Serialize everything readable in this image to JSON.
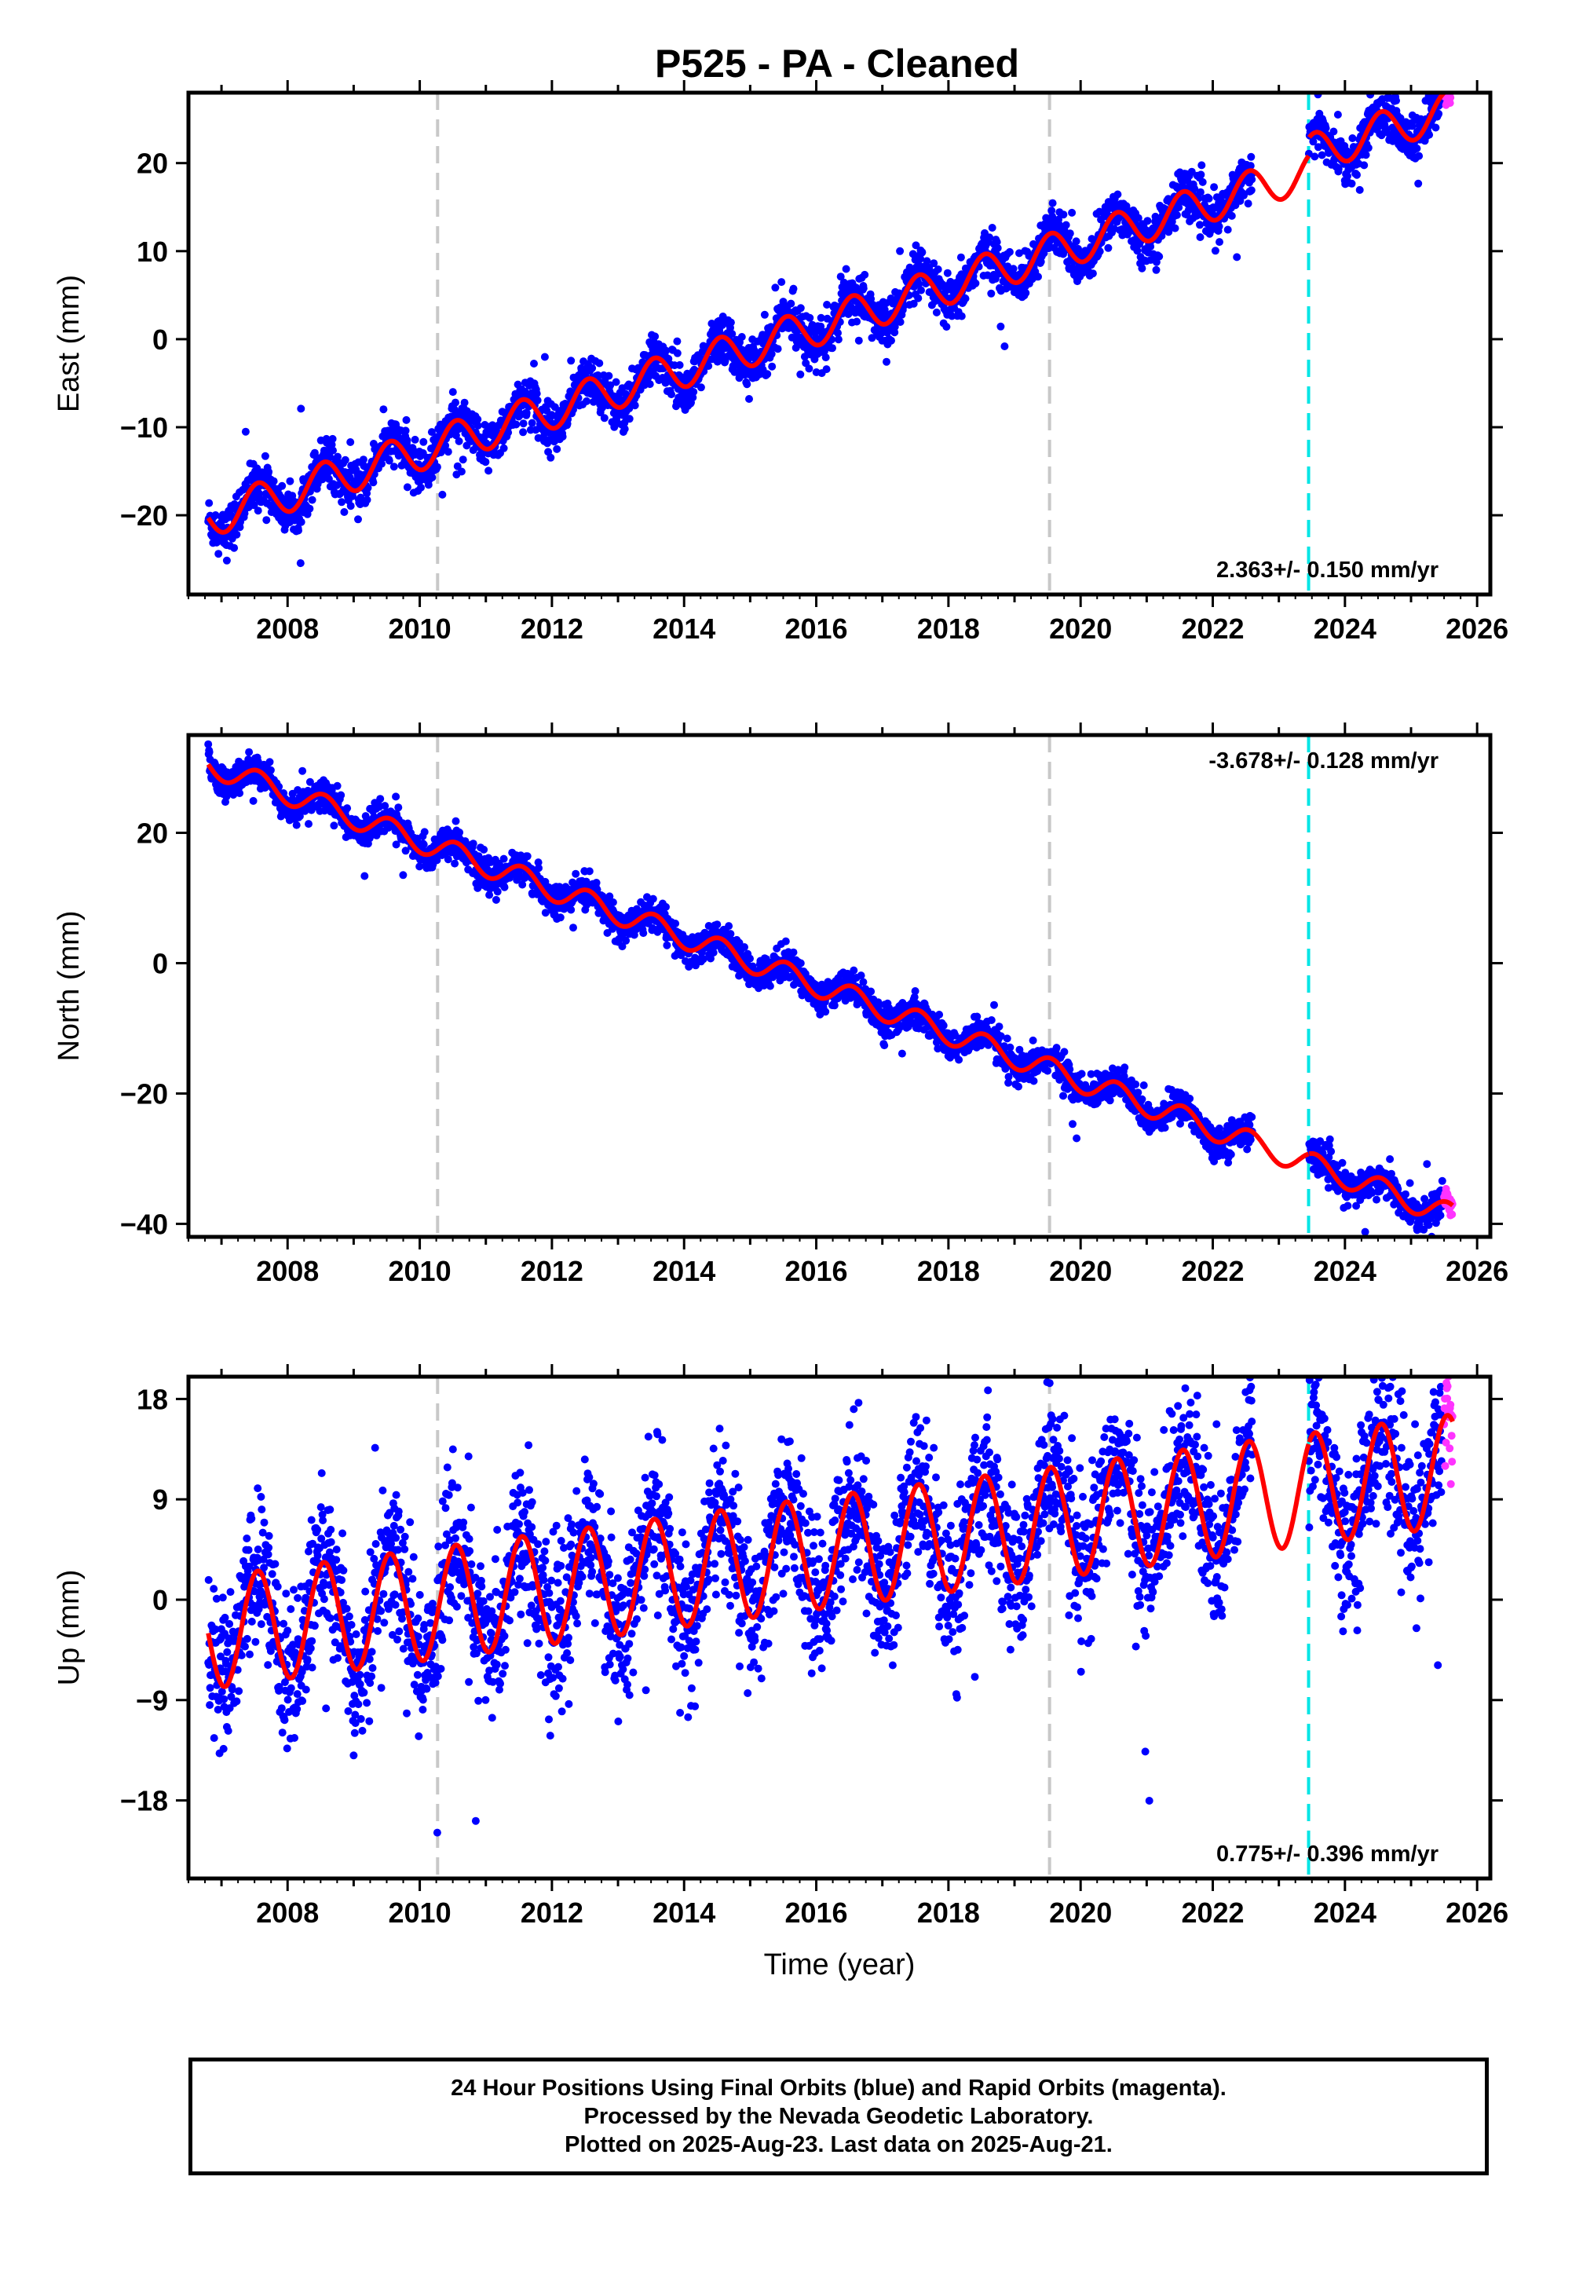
{
  "title": "P525  - PA - Cleaned",
  "colors": {
    "final_points": "#0000ff",
    "rapid_points": "#ff33ff",
    "model": "#ff0000",
    "event_line": "#c8c8c8",
    "equipment_line": "#00e5e5"
  },
  "chart_data": [
    {
      "type": "scatter",
      "component": "East",
      "ylabel": "East (mm)",
      "xlabel": "",
      "xlim": [
        2006.5,
        2026.2
      ],
      "ylim": [
        -29,
        28
      ],
      "xticks": [
        "2008",
        "2010",
        "2012",
        "2014",
        "2016",
        "2018",
        "2020",
        "2022",
        "2024",
        "2026"
      ],
      "yticks": [
        "−20",
        "−10",
        "0",
        "10",
        "20"
      ],
      "ytick_values": [
        -20,
        -10,
        0,
        10,
        20
      ],
      "rate_label": "2.363+/- 0.150 mm/yr",
      "rate_mm_per_yr": 2.363,
      "rate_sigma": 0.15,
      "start_year": 2006.8,
      "end_year": 2025.63,
      "start_value": -20.3,
      "seasonal_amplitude": 2.2,
      "scatter_sd": 1.3,
      "data_gap": [
        2022.6,
        2023.45
      ],
      "event_lines_gray": [
        2010.27,
        2019.53
      ],
      "event_line_cyan": 2023.45,
      "offset_at_cyan": 2.0
    },
    {
      "type": "scatter",
      "component": "North",
      "ylabel": "North (mm)",
      "xlabel": "",
      "xlim": [
        2006.5,
        2026.2
      ],
      "ylim": [
        -42,
        35
      ],
      "xticks": [
        "2008",
        "2010",
        "2012",
        "2014",
        "2016",
        "2018",
        "2020",
        "2022",
        "2024",
        "2026"
      ],
      "yticks": [
        "−40",
        "−20",
        "0",
        "20"
      ],
      "ytick_values": [
        -40,
        -20,
        0,
        20
      ],
      "rate_label": "-3.678+/- 0.128 mm/yr",
      "rate_mm_per_yr": -3.678,
      "rate_sigma": 0.128,
      "start_year": 2006.8,
      "end_year": 2025.63,
      "start_value": 30.5,
      "seasonal_amplitude": 1.8,
      "scatter_sd": 1.2,
      "data_gap": [
        2022.6,
        2023.45
      ],
      "event_lines_gray": [
        2010.27,
        2019.53
      ],
      "event_line_cyan": 2023.45,
      "offset_at_cyan": 0.0
    },
    {
      "type": "scatter",
      "component": "Up",
      "ylabel": "Up (mm)",
      "xlabel": "Time (year)",
      "xlim": [
        2006.5,
        2026.2
      ],
      "ylim": [
        -25,
        20
      ],
      "xticks": [
        "2008",
        "2010",
        "2012",
        "2014",
        "2016",
        "2018",
        "2020",
        "2022",
        "2024",
        "2026"
      ],
      "yticks": [
        "−18",
        "−9",
        "0",
        "9",
        "18"
      ],
      "ytick_values": [
        -18,
        -9,
        0,
        9,
        18
      ],
      "rate_label": "0.775+/- 0.396 mm/yr",
      "rate_mm_per_yr": 0.775,
      "rate_sigma": 0.396,
      "start_year": 2006.8,
      "end_year": 2025.63,
      "start_value": -3.0,
      "seasonal_amplitude": 5.0,
      "scatter_sd": 3.3,
      "data_gap": [
        2022.6,
        2023.45
      ],
      "event_lines_gray": [
        2010.27,
        2019.53
      ],
      "event_line_cyan": 2023.45,
      "offset_at_cyan": 0.0
    }
  ],
  "footer": {
    "line1": "24 Hour Positions Using Final Orbits (blue) and Rapid Orbits (magenta).",
    "line2": "Processed by the Nevada Geodetic Laboratory.",
    "line3": "Plotted on 2025-Aug-23. Last data on 2025-Aug-21."
  }
}
